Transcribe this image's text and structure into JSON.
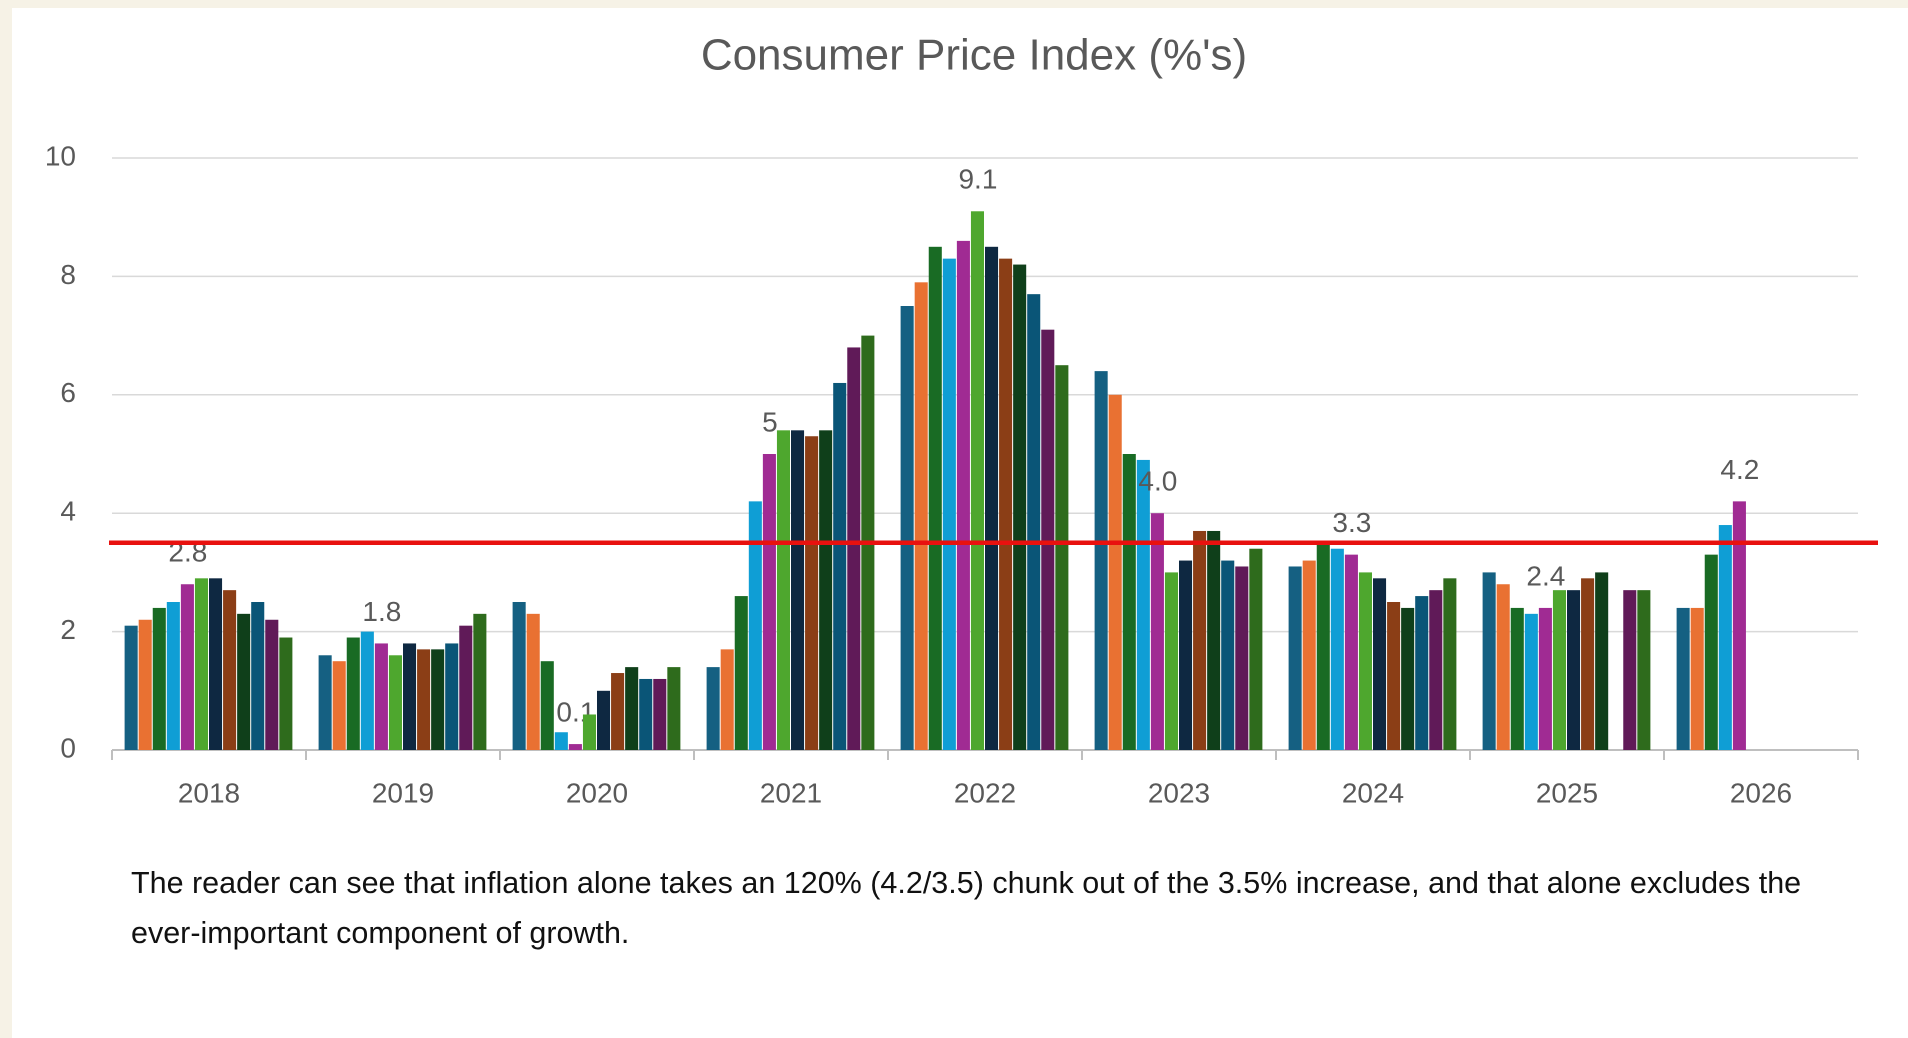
{
  "chart_data": {
    "type": "bar",
    "title": "Consumer Price Index (%'s)",
    "categories": [
      "2018",
      "2019",
      "2020",
      "2021",
      "2022",
      "2023",
      "2024",
      "2025",
      "2026"
    ],
    "series": [
      {
        "color": "#156082",
        "values": [
          2.1,
          1.6,
          2.5,
          1.4,
          7.5,
          6.4,
          3.1,
          3.0,
          2.4
        ]
      },
      {
        "color": "#e97132",
        "values": [
          2.2,
          1.5,
          2.3,
          1.7,
          7.9,
          6.0,
          3.2,
          2.8,
          2.4
        ]
      },
      {
        "color": "#196b24",
        "values": [
          2.4,
          1.9,
          1.5,
          2.6,
          8.5,
          5.0,
          3.5,
          2.4,
          3.3
        ]
      },
      {
        "color": "#0f9ed5",
        "values": [
          2.5,
          2.0,
          0.3,
          4.2,
          8.3,
          4.9,
          3.4,
          2.3,
          3.8
        ]
      },
      {
        "color": "#a02b93",
        "values": [
          2.8,
          1.8,
          0.1,
          5,
          8.6,
          4,
          3.3,
          2.4,
          4.2
        ],
        "value_labels": [
          "2.8",
          "1.8",
          "0.1",
          "5",
          null,
          "4.0",
          "3.3",
          "2.4",
          "4.2"
        ]
      },
      {
        "color": "#4ea72e",
        "values": [
          2.9,
          1.6,
          0.6,
          5.4,
          9.1,
          3.0,
          3.0,
          2.7,
          null
        ],
        "value_labels": [
          null,
          null,
          null,
          null,
          "9.1",
          null,
          null,
          null,
          null
        ]
      },
      {
        "color": "#0e2841",
        "values": [
          2.9,
          1.8,
          1.0,
          5.4,
          8.5,
          3.2,
          2.9,
          2.7,
          null
        ]
      },
      {
        "color": "#8b3e16",
        "values": [
          2.7,
          1.7,
          1.3,
          5.3,
          8.3,
          3.7,
          2.5,
          2.9,
          null
        ]
      },
      {
        "color": "#0f3f1a",
        "values": [
          2.3,
          1.7,
          1.4,
          5.4,
          8.2,
          3.7,
          2.4,
          3.0,
          null
        ]
      },
      {
        "color": "#0a5577",
        "values": [
          2.5,
          1.8,
          1.2,
          6.2,
          7.7,
          3.2,
          2.6,
          null,
          null
        ]
      },
      {
        "color": "#601a58",
        "values": [
          2.2,
          2.1,
          1.2,
          6.8,
          7.1,
          3.1,
          2.7,
          2.7,
          null
        ]
      },
      {
        "color": "#2e6b1c",
        "values": [
          1.9,
          2.3,
          1.4,
          7.0,
          6.5,
          3.4,
          2.9,
          2.7,
          null
        ]
      }
    ],
    "ylim": [
      0,
      10
    ],
    "yticks": [
      0,
      2,
      4,
      6,
      8,
      10
    ],
    "grid": true,
    "reference_line": {
      "value": 3.5,
      "color": "#e8110f"
    },
    "note": "The reader can see that inflation alone takes an 120% (4.2/3.5) chunk out of the 3.5% increase, and that alone excludes the ever-important component of growth."
  }
}
